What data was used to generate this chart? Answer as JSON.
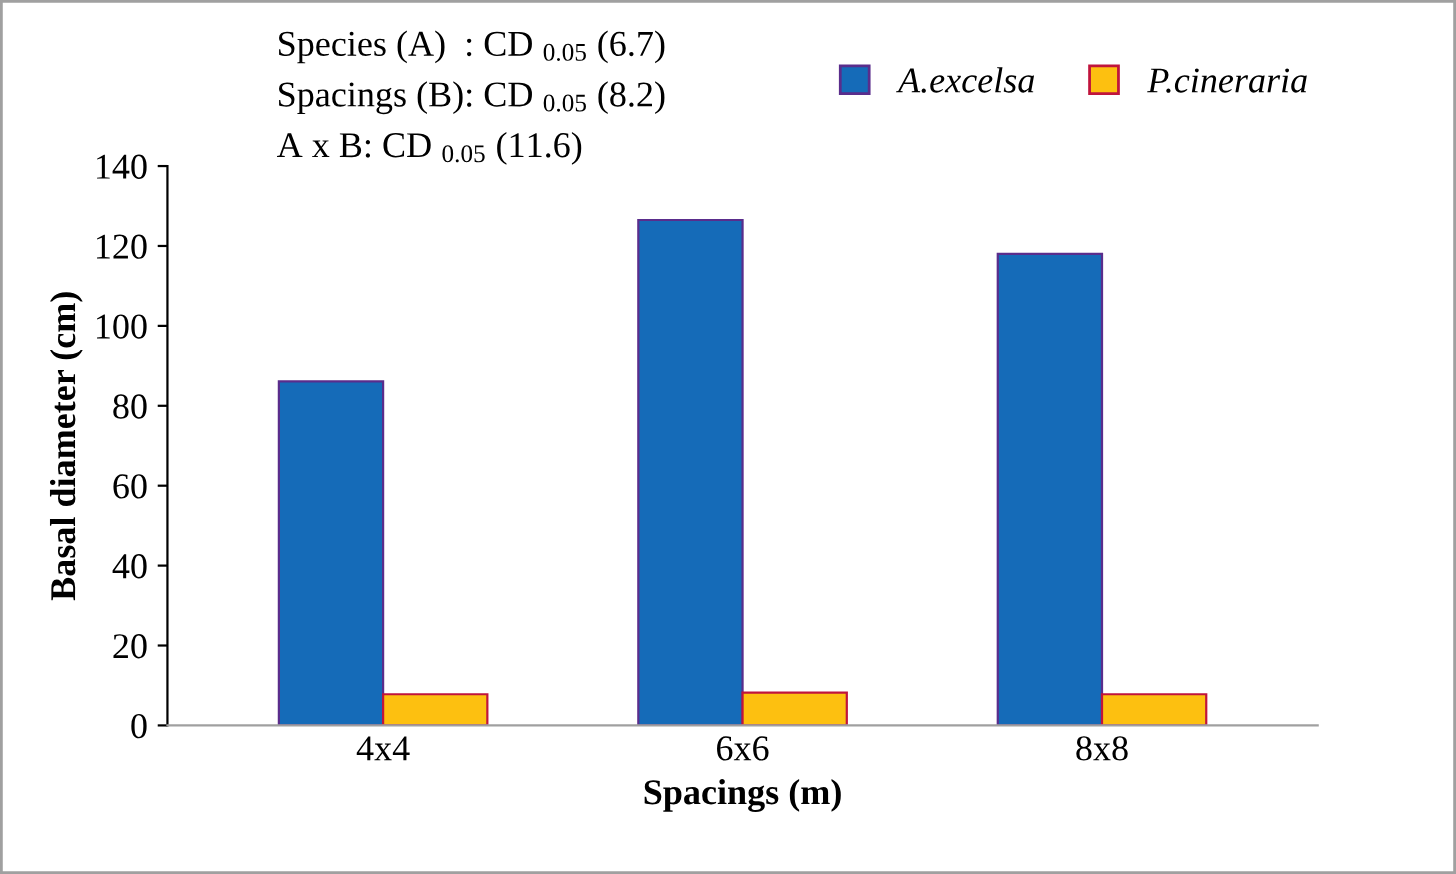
{
  "chart_data": {
    "type": "bar",
    "xlabel": "Spacings (m)",
    "ylabel": "Basal diameter (cm)",
    "categories": [
      "4x4",
      "6x6",
      "8x8"
    ],
    "series": [
      {
        "name": "A.excelsa",
        "color": "#156bb8",
        "values": [
          86.1,
          126.5,
          118
        ]
      },
      {
        "name": "P.cineraria",
        "color": "#fdc010",
        "values": [
          7.8,
          8.2,
          7.8
        ]
      }
    ],
    "ylim": [
      0,
      140
    ],
    "yticks": [
      0,
      20,
      40,
      60,
      80,
      100,
      120,
      140
    ],
    "grid": false,
    "legend": "top right",
    "annotations": [
      "Species (A)  : CD $_{0.05}$ (6.7)",
      "Spacings (B): CD $_{0.05}$ (8.2)",
      "A x B: CD $_{0.05}$ (11.6)"
    ]
  }
}
